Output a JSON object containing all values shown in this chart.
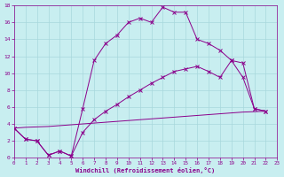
{
  "bg_color": "#c8eef0",
  "line_color": "#8b008b",
  "grid_color": "#a8d8dc",
  "xlabel": "Windchill (Refroidissement éolien,°C)",
  "xlim": [
    0,
    23
  ],
  "ylim": [
    0,
    18
  ],
  "xticks": [
    0,
    1,
    2,
    3,
    4,
    5,
    6,
    7,
    8,
    9,
    10,
    11,
    12,
    13,
    14,
    15,
    16,
    17,
    18,
    19,
    20,
    21,
    22,
    23
  ],
  "yticks": [
    0,
    2,
    4,
    6,
    8,
    10,
    12,
    14,
    16,
    18
  ],
  "line1_x": [
    0,
    1,
    2,
    3,
    4,
    5,
    6,
    7,
    8,
    9,
    10,
    11,
    12,
    13,
    14,
    15,
    16,
    17,
    18,
    19,
    20,
    21,
    22
  ],
  "line1_y": [
    3.5,
    2.2,
    2.0,
    0.3,
    0.8,
    0.2,
    5.8,
    11.5,
    13.5,
    14.5,
    16.0,
    16.5,
    16.0,
    17.8,
    17.2,
    17.2,
    14.0,
    13.5,
    12.7,
    11.5,
    9.5,
    5.8,
    5.5
  ],
  "line2_x": [
    0,
    1,
    2,
    3,
    4,
    5,
    6,
    7,
    8,
    9,
    10,
    11,
    12,
    13,
    14,
    15,
    16,
    17,
    18,
    19,
    20,
    21,
    22
  ],
  "line2_y": [
    3.5,
    2.2,
    2.0,
    0.3,
    0.8,
    0.2,
    3.0,
    4.5,
    5.5,
    6.3,
    7.2,
    8.0,
    8.8,
    9.5,
    10.2,
    10.5,
    10.8,
    10.2,
    9.5,
    11.5,
    11.2,
    5.8,
    5.5
  ],
  "line3_x": [
    0,
    1,
    2,
    3,
    4,
    5,
    6,
    7,
    8,
    9,
    10,
    11,
    12,
    13,
    14,
    15,
    16,
    17,
    18,
    19,
    20,
    21,
    22
  ],
  "line3_y": [
    3.5,
    3.6,
    3.65,
    3.7,
    3.8,
    3.9,
    4.0,
    4.1,
    4.2,
    4.3,
    4.4,
    4.5,
    4.6,
    4.7,
    4.8,
    4.9,
    5.0,
    5.1,
    5.2,
    5.3,
    5.4,
    5.45,
    5.5
  ]
}
